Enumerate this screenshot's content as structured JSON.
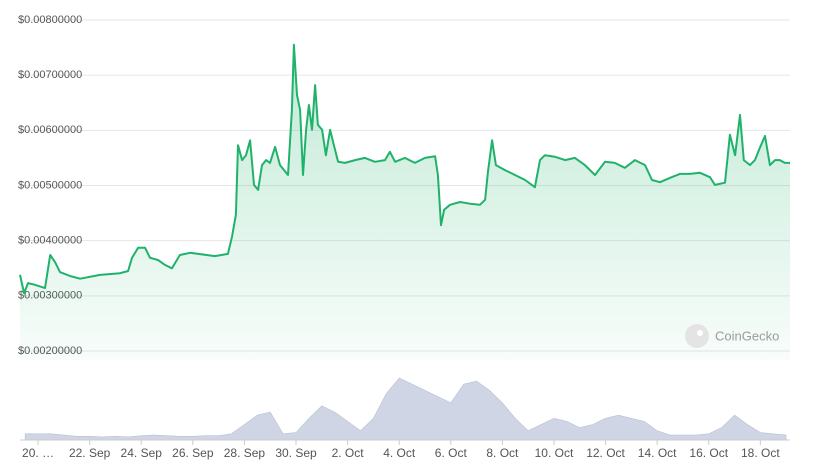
{
  "chart_data": {
    "type": "line",
    "watermark": "CoinGecko",
    "x": [
      -0.7,
      -0.54,
      -0.39,
      -0.12,
      0.27,
      0.47,
      0.66,
      0.85,
      1.24,
      1.63,
      2.4,
      3.18,
      3.49,
      3.64,
      3.88,
      4.15,
      4.34,
      4.65,
      4.92,
      5.19,
      5.5,
      5.89,
      6.86,
      7.36,
      7.52,
      7.67,
      7.75,
      7.91,
      8.06,
      8.22,
      8.37,
      8.53,
      8.68,
      8.84,
      8.99,
      9.19,
      9.38,
      9.69,
      9.84,
      9.92,
      10.04,
      10.16,
      10.27,
      10.39,
      10.5,
      10.62,
      10.74,
      10.85,
      11.01,
      11.16,
      11.32,
      11.47,
      11.63,
      11.9,
      12.29,
      12.67,
      13.06,
      13.45,
      13.64,
      13.84,
      14.22,
      14.61,
      15.0,
      15.39,
      15.5,
      15.62,
      15.74,
      15.97,
      16.36,
      16.74,
      17.13,
      17.33,
      17.44,
      17.6,
      17.75,
      18.1,
      18.49,
      18.88,
      19.26,
      19.46,
      19.65,
      20.04,
      20.43,
      20.81,
      21.2,
      21.59,
      21.98,
      22.36,
      22.75,
      23.14,
      23.53,
      23.8,
      24.11,
      24.5,
      24.88,
      25.27,
      25.66,
      26.05,
      26.24,
      26.63,
      26.82,
      27.02,
      27.21,
      27.36,
      27.6,
      27.79,
      27.98,
      28.18,
      28.37,
      28.57,
      28.76,
      28.95,
      29.15
    ],
    "series": [
      {
        "color": "#20b26b",
        "values": [
          0.00338,
          0.00305,
          0.00323,
          0.0032,
          0.00314,
          0.00374,
          0.00361,
          0.00343,
          0.00336,
          0.00331,
          0.00338,
          0.00341,
          0.00345,
          0.00369,
          0.00387,
          0.00387,
          0.00369,
          0.00365,
          0.00356,
          0.0035,
          0.00374,
          0.00378,
          0.00372,
          0.00376,
          0.00407,
          0.00447,
          0.00573,
          0.00546,
          0.00555,
          0.00582,
          0.00501,
          0.00492,
          0.00537,
          0.00546,
          0.00541,
          0.0057,
          0.00537,
          0.00519,
          0.00637,
          0.00755,
          0.00664,
          0.00637,
          0.00519,
          0.00601,
          0.00646,
          0.00601,
          0.00682,
          0.0061,
          0.00601,
          0.00555,
          0.00601,
          0.00573,
          0.00543,
          0.00541,
          0.00546,
          0.0055,
          0.00543,
          0.00546,
          0.00561,
          0.00543,
          0.0055,
          0.00541,
          0.0055,
          0.00553,
          0.00519,
          0.00428,
          0.00456,
          0.00465,
          0.0047,
          0.00467,
          0.00465,
          0.00474,
          0.00524,
          0.00582,
          0.00537,
          0.00528,
          0.00519,
          0.0051,
          0.00497,
          0.00546,
          0.00555,
          0.00552,
          0.00546,
          0.0055,
          0.00537,
          0.00519,
          0.00543,
          0.00541,
          0.00532,
          0.00546,
          0.00537,
          0.0051,
          0.00506,
          0.00514,
          0.00521,
          0.00521,
          0.00523,
          0.00515,
          0.00501,
          0.00505,
          0.00592,
          0.00555,
          0.00628,
          0.00546,
          0.00537,
          0.00546,
          0.00568,
          0.0059,
          0.00537,
          0.00546,
          0.00546,
          0.00541,
          0.00541
        ]
      }
    ],
    "volume": {
      "color": "#cfd5e4",
      "ylim": [
        0,
        100
      ],
      "x": [
        -0.5,
        0,
        0.5,
        1,
        1.5,
        2,
        2.5,
        3,
        3.5,
        4,
        4.5,
        5,
        5.5,
        6,
        6.5,
        7,
        7.5,
        8,
        8.5,
        9,
        9.5,
        10,
        10.5,
        11,
        11.5,
        12,
        12.5,
        13,
        13.5,
        14,
        14.5,
        15,
        15.5,
        16,
        16.5,
        17,
        17.5,
        18,
        18.5,
        19,
        19.5,
        20,
        20.5,
        21,
        21.5,
        22,
        22.5,
        23,
        23.5,
        24,
        24.5,
        25,
        25.5,
        26,
        26.5,
        27,
        27.5,
        28,
        28.5,
        29
      ],
      "values": [
        10,
        10,
        10,
        8,
        6,
        6,
        5,
        6,
        5,
        7,
        8,
        7,
        6,
        6,
        7,
        7,
        10,
        25,
        40,
        45,
        10,
        12,
        35,
        55,
        45,
        30,
        15,
        35,
        75,
        100,
        90,
        80,
        70,
        60,
        90,
        95,
        80,
        60,
        35,
        15,
        25,
        35,
        30,
        20,
        25,
        35,
        40,
        35,
        30,
        15,
        8,
        8,
        8,
        10,
        20,
        40,
        25,
        12,
        10,
        8
      ]
    },
    "xlim": [
      -0.7,
      29.15
    ],
    "xticks": [
      {
        "value": 0,
        "label": "20. …"
      },
      {
        "value": 2,
        "label": "22. Sep"
      },
      {
        "value": 4,
        "label": "24. Sep"
      },
      {
        "value": 6,
        "label": "26. Sep"
      },
      {
        "value": 8,
        "label": "28. Sep"
      },
      {
        "value": 10,
        "label": "30. Sep"
      },
      {
        "value": 12,
        "label": "2. Oct"
      },
      {
        "value": 14,
        "label": "4. Oct"
      },
      {
        "value": 16,
        "label": "6. Oct"
      },
      {
        "value": 18,
        "label": "8. Oct"
      },
      {
        "value": 20,
        "label": "10. Oct"
      },
      {
        "value": 22,
        "label": "12. Oct"
      },
      {
        "value": 24,
        "label": "14. Oct"
      },
      {
        "value": 26,
        "label": "16. Oct"
      },
      {
        "value": 28,
        "label": "18. Oct"
      }
    ],
    "ylim": [
      0.002,
      0.008
    ],
    "yticks": [
      {
        "value": 0.002,
        "label": "$0.00200000"
      },
      {
        "value": 0.003,
        "label": "$0.00300000"
      },
      {
        "value": 0.004,
        "label": "$0.00400000"
      },
      {
        "value": 0.005,
        "label": "$0.00500000"
      },
      {
        "value": 0.006,
        "label": "$0.00600000"
      },
      {
        "value": 0.007,
        "label": "$0.00700000"
      },
      {
        "value": 0.008,
        "label": "$0.00800000"
      }
    ],
    "grid": true
  }
}
